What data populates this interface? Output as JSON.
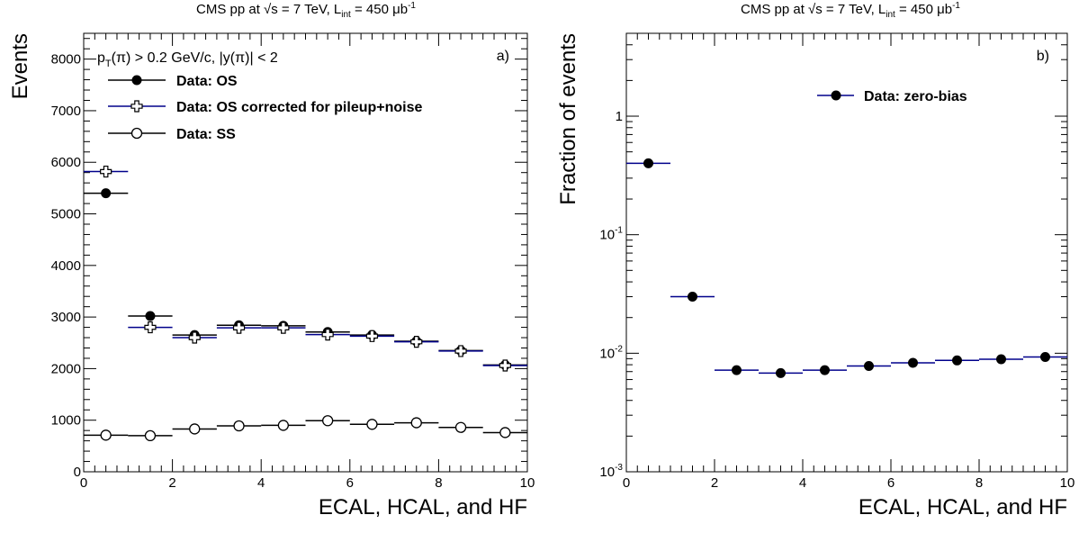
{
  "chart_data": [
    {
      "type": "scatter",
      "panel": "a)",
      "title": {
        "prefix": "CMS pp at ",
        "sqrt_s": "√s = 7 TeV, L",
        "sub": "int",
        "mid": " = 450 μb",
        "sup": "-1"
      },
      "xlabel": "ECAL, HCAL, and HF",
      "ylabel": "Events",
      "xlim": [
        0,
        10
      ],
      "ylim": [
        0,
        8500
      ],
      "x_ticks": [
        "0",
        "2",
        "4",
        "6",
        "8",
        "10"
      ],
      "y_ticks": [
        "0",
        "1000",
        "2000",
        "3000",
        "4000",
        "5000",
        "6000",
        "7000",
        "8000"
      ],
      "cut_label": {
        "a": "p",
        "b": "T",
        "c": "(π) > 0.2 GeV/c, |y(π)| < 2"
      },
      "x": [
        0.5,
        1.5,
        2.5,
        3.5,
        4.5,
        5.5,
        6.5,
        7.5,
        8.5,
        9.5
      ],
      "series": [
        {
          "name": "Data: OS",
          "marker": "filled-circle",
          "line_color": "#000000",
          "values": [
            5400,
            3020,
            2650,
            2840,
            2830,
            2710,
            2650,
            2530,
            2350,
            2070
          ]
        },
        {
          "name": "Data: OS corrected for pileup+noise",
          "marker": "open-cross",
          "line_color": "#00008b",
          "values": [
            5820,
            2800,
            2600,
            2790,
            2790,
            2660,
            2630,
            2520,
            2340,
            2060
          ]
        },
        {
          "name": "Data: SS",
          "marker": "open-circle",
          "line_color": "#000000",
          "values": [
            710,
            700,
            830,
            890,
            900,
            990,
            920,
            950,
            860,
            760
          ]
        }
      ],
      "legend_position": "top-left"
    },
    {
      "type": "scatter",
      "panel": "b)",
      "title": {
        "prefix": "CMS pp at ",
        "sqrt_s": "√s = 7 TeV, L",
        "sub": "int",
        "mid": " = 450 μb",
        "sup": "-1"
      },
      "xlabel": "ECAL, HCAL, and HF",
      "ylabel": "Fraction of events",
      "xlim": [
        0,
        10
      ],
      "ylim": [
        0.001,
        5
      ],
      "log_y": true,
      "x_ticks": [
        "0",
        "2",
        "4",
        "6",
        "8",
        "10"
      ],
      "y_ticks": [
        {
          "base": "10",
          "exp": "-3"
        },
        {
          "base": "10",
          "exp": "-2"
        },
        {
          "base": "10",
          "exp": "-1"
        },
        {
          "base": "1",
          "exp": ""
        }
      ],
      "x": [
        0.5,
        1.5,
        2.5,
        3.5,
        4.5,
        5.5,
        6.5,
        7.5,
        8.5,
        9.5
      ],
      "series": [
        {
          "name": "Data: zero-bias",
          "marker": "filled-circle",
          "line_color": "#00008b",
          "values": [
            0.4,
            0.03,
            0.0072,
            0.0068,
            0.0072,
            0.0078,
            0.0083,
            0.0087,
            0.0089,
            0.0093
          ]
        }
      ],
      "legend_position": "top-right"
    }
  ]
}
